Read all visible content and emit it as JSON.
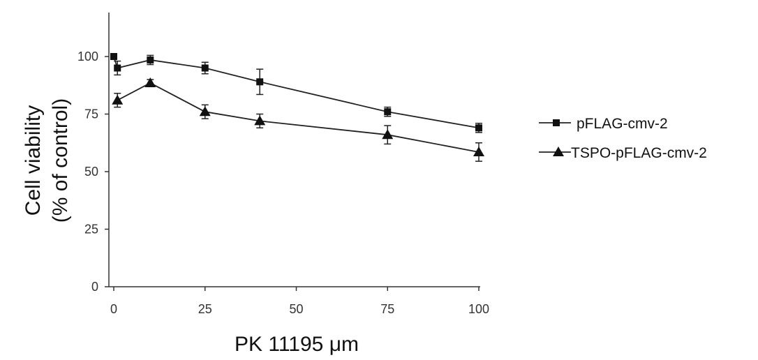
{
  "chart_data": {
    "type": "line",
    "title": "",
    "xlabel": "PK 11195 μm",
    "ylabel": [
      "Cell viability",
      "(% of control)"
    ],
    "xlim": [
      0,
      100
    ],
    "ylim": [
      0,
      120
    ],
    "xticks": [
      0,
      25,
      50,
      75,
      100
    ],
    "yticks": [
      0,
      25,
      50,
      75,
      100
    ],
    "grid": false,
    "legend_position": "right",
    "series": [
      {
        "name": "pFLAG-cmv-2",
        "marker": "square",
        "x": [
          0,
          1,
          10,
          25,
          40,
          75,
          100
        ],
        "y": [
          100,
          95,
          98.5,
          95,
          89,
          76,
          69
        ],
        "err": [
          1,
          3,
          2,
          2.5,
          5.5,
          2,
          2
        ]
      },
      {
        "name": "TSPO-pFLAG-cmv-2",
        "marker": "triangle",
        "x": [
          1,
          10,
          25,
          40,
          75,
          100
        ],
        "y": [
          81,
          88.5,
          76,
          72,
          66,
          58.5
        ],
        "err": [
          3,
          1.5,
          3,
          3,
          4,
          4
        ]
      }
    ]
  }
}
